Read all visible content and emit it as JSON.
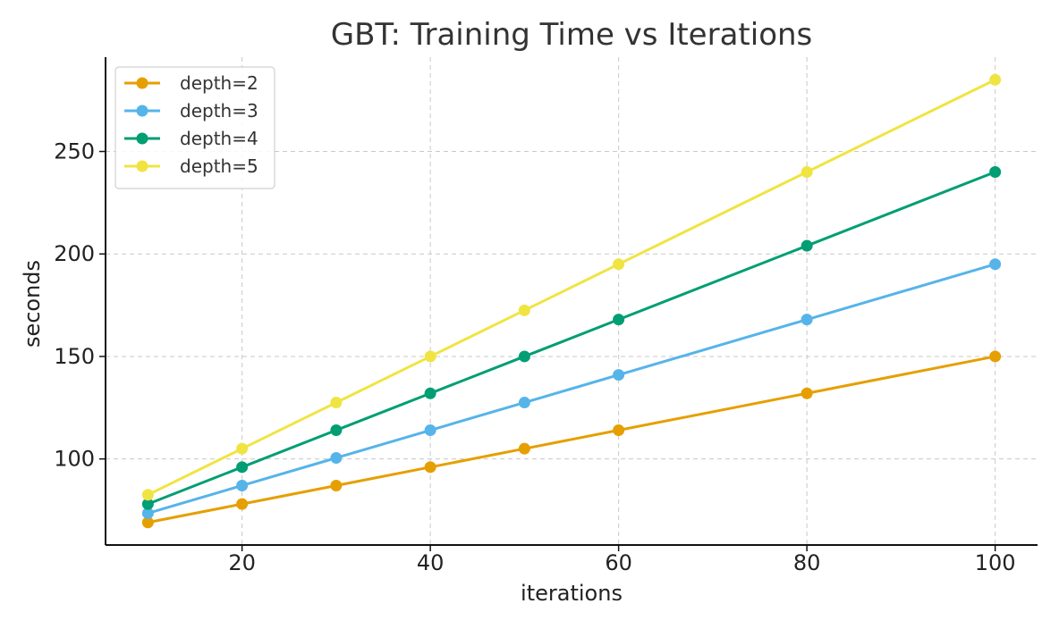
{
  "chart_data": {
    "type": "line",
    "title": "GBT: Training Time vs Iterations",
    "xlabel": "iterations",
    "ylabel": "seconds",
    "xlim": [
      5.5,
      104.5
    ],
    "ylim": [
      58,
      296
    ],
    "xticks": [
      20,
      40,
      60,
      80,
      100
    ],
    "yticks": [
      100,
      150,
      200,
      250
    ],
    "grid": true,
    "legend_position": "top-left",
    "x": [
      10,
      20,
      30,
      40,
      50,
      60,
      80,
      100
    ],
    "series": [
      {
        "name": "depth=2",
        "color": "#E69F00",
        "values": [
          69,
          78,
          87,
          96,
          105,
          114,
          132,
          150
        ]
      },
      {
        "name": "depth=3",
        "color": "#56B4E9",
        "values": [
          73.5,
          87,
          100.5,
          114,
          127.5,
          141,
          168,
          195
        ]
      },
      {
        "name": "depth=4",
        "color": "#009E73",
        "values": [
          78,
          96,
          114,
          132,
          150,
          168,
          204,
          240
        ]
      },
      {
        "name": "depth=5",
        "color": "#F0E442",
        "values": [
          82.5,
          105,
          127.5,
          150,
          172.5,
          195,
          240,
          285
        ]
      }
    ]
  }
}
